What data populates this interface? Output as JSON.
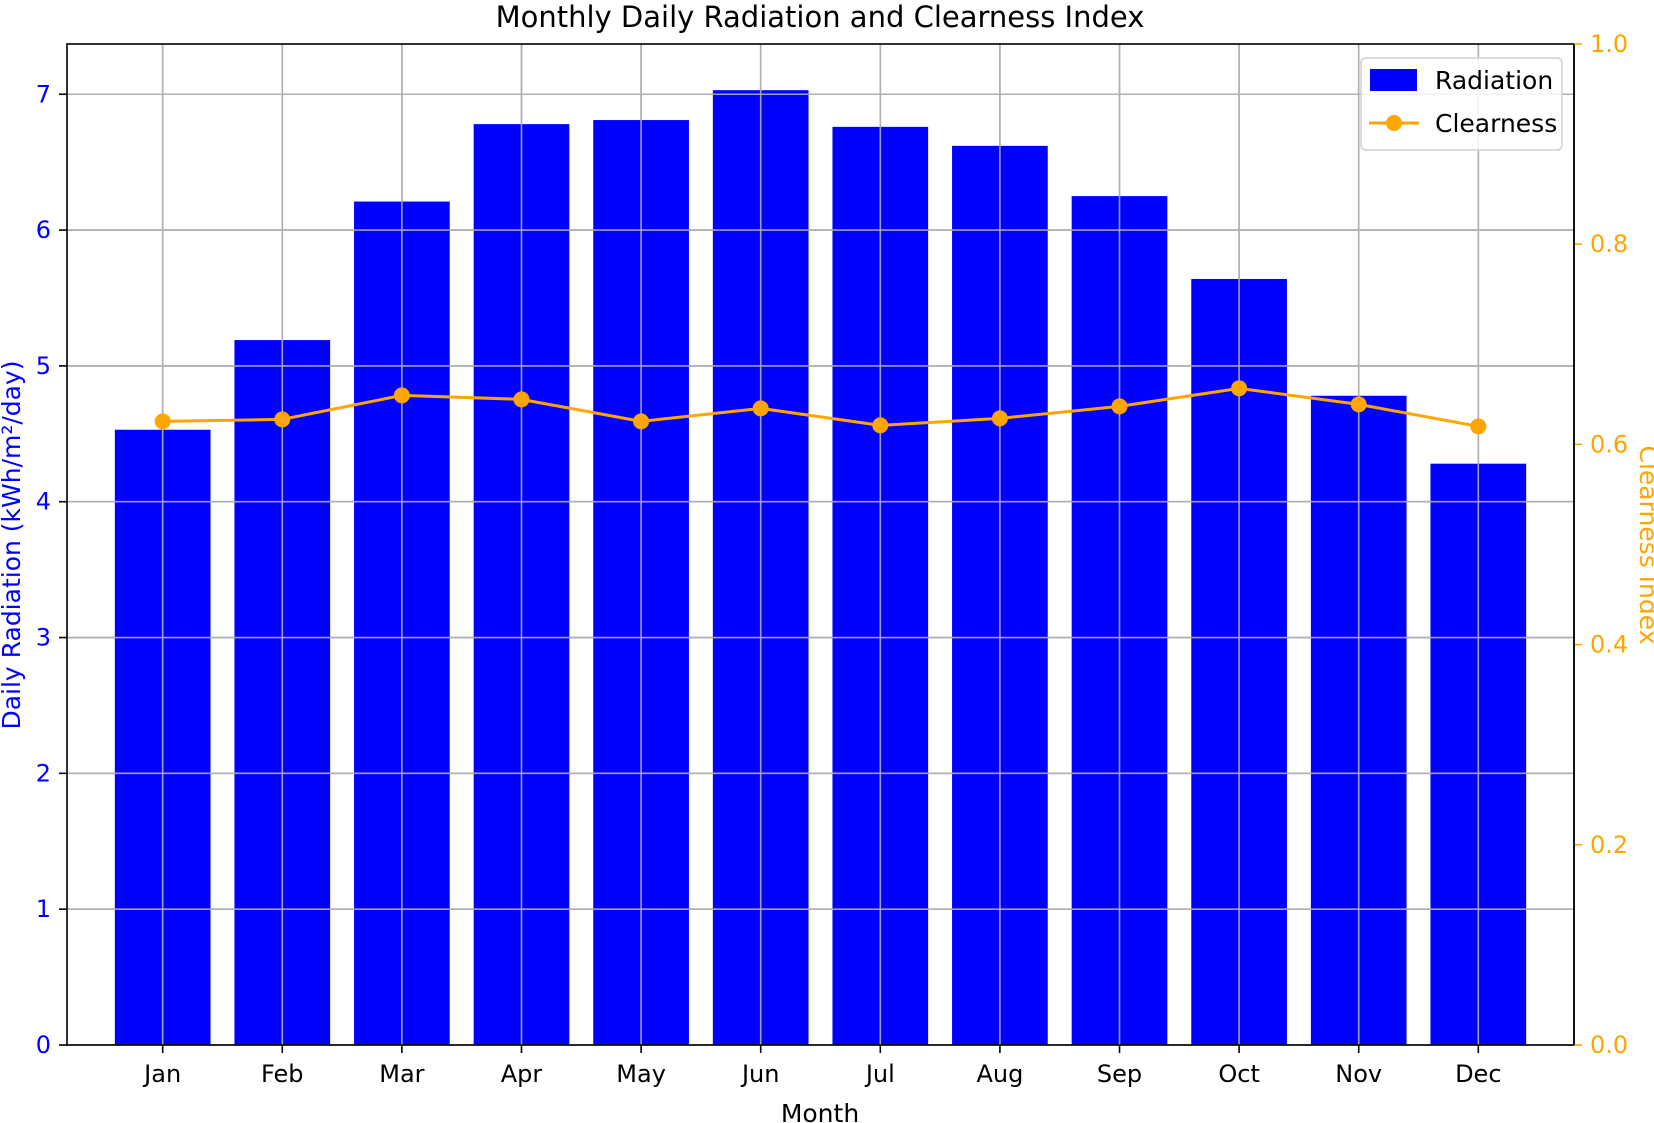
{
  "chart_data": {
    "type": "bar+line",
    "title": "Monthly Daily Radiation and Clearness Index",
    "xlabel": "Month",
    "categories": [
      "Jan",
      "Feb",
      "Mar",
      "Apr",
      "May",
      "Jun",
      "Jul",
      "Aug",
      "Sep",
      "Oct",
      "Nov",
      "Dec"
    ],
    "y_left": {
      "label": "Daily Radiation (kWh/m²/day)",
      "ticks": [
        "0",
        "1",
        "2",
        "3",
        "4",
        "5",
        "6",
        "7"
      ],
      "lim": [
        0,
        7.37
      ],
      "color": "#0000ff"
    },
    "y_right": {
      "label": "Clearness Index",
      "ticks": [
        "0.0",
        "0.2",
        "0.4",
        "0.6",
        "0.8",
        "1.0"
      ],
      "lim": [
        0,
        1.0
      ],
      "color": "#ffa500"
    },
    "grid": true,
    "legend_position": "top-right",
    "series": [
      {
        "name": "Radiation",
        "kind": "bar",
        "axis": "left",
        "color": "#0000ff",
        "values": [
          4.53,
          5.19,
          6.21,
          6.78,
          6.81,
          7.03,
          6.76,
          6.62,
          6.25,
          5.64,
          4.78,
          4.28
        ]
      },
      {
        "name": "Clearness",
        "kind": "line",
        "axis": "right",
        "color": "#ffa500",
        "marker": "circle",
        "values": [
          0.623,
          0.625,
          0.649,
          0.645,
          0.623,
          0.636,
          0.619,
          0.626,
          0.638,
          0.656,
          0.64,
          0.618
        ]
      }
    ]
  }
}
